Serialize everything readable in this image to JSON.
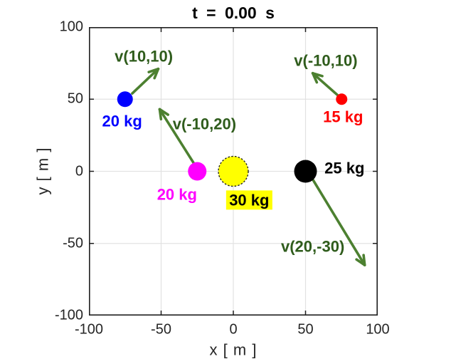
{
  "title": "t = 0.00 s",
  "axes": {
    "x_label": "x [ m ]",
    "y_label": "y [ m ]",
    "x_tick_labels": [
      "-100",
      "-50",
      "0",
      "50",
      "100"
    ],
    "y_tick_labels": [
      "-100",
      "-50",
      "0",
      "50",
      "100"
    ]
  },
  "colors": {
    "background": "#ffffff",
    "axis_box": "#1f1f1f",
    "grid": "#e2e2e2",
    "tick_text": "#262626",
    "velocity_text": "#2f5c1c",
    "velocity_arrow": "#4c8030"
  },
  "chart_data": {
    "type": "scatter",
    "title": "t = 0.00 s",
    "time_s": 0.0,
    "xlabel": "x [m]",
    "ylabel": "y [m]",
    "xlim": [
      -100,
      100
    ],
    "ylim": [
      -100,
      100
    ],
    "x_ticks": [
      -100,
      -50,
      0,
      50,
      100
    ],
    "y_ticks": [
      -100,
      -50,
      0,
      50,
      100
    ],
    "grid": true,
    "particles": [
      {
        "id": "blue",
        "x": -75,
        "y": 50,
        "mass_kg": 20,
        "mass_label": "20 kg",
        "mass_label_color": "#0000ff",
        "color": "#0000ff",
        "radius_px": 11,
        "mass_label_pos": {
          "x": -77,
          "y": 35
        },
        "velocity": {
          "vx": 10,
          "vy": 10,
          "label": "v(10,10)",
          "label_pos": {
            "x": -62,
            "y": 80
          },
          "arrow": {
            "x1": -70,
            "y1": 54,
            "x2": -52,
            "y2": 71
          }
        }
      },
      {
        "id": "magenta",
        "x": -25,
        "y": 0,
        "mass_kg": 20,
        "mass_label": "20 kg",
        "mass_label_color": "#ff00ff",
        "color": "#ff00ff",
        "radius_px": 13,
        "mass_label_pos": {
          "x": -39,
          "y": -16
        },
        "velocity": {
          "vx": -10,
          "vy": 20,
          "label": "v(-10,20)",
          "label_pos": {
            "x": -20,
            "y": 33
          },
          "arrow": {
            "x1": -27,
            "y1": 5,
            "x2": -51,
            "y2": 43
          }
        }
      },
      {
        "id": "yellow",
        "x": 0,
        "y": 0,
        "mass_kg": 30,
        "mass_label": "30 kg",
        "mass_label_color": "#000000",
        "label_highlight": "#ffff00",
        "color": "#ffff00",
        "radius_px": 21,
        "outline": "dotted",
        "mass_label_pos": {
          "x": 11,
          "y": -20
        },
        "velocity": null
      },
      {
        "id": "black",
        "x": 50,
        "y": 0,
        "mass_kg": 25,
        "mass_label": "25 kg",
        "mass_label_color": "#000000",
        "color": "#000000",
        "radius_px": 16,
        "mass_label_pos": {
          "x": 77,
          "y": 2
        },
        "velocity": {
          "vx": 20,
          "vy": -30,
          "label": "v(20,-30)",
          "label_pos": {
            "x": 55,
            "y": -52
          },
          "arrow": {
            "x1": 54,
            "y1": -4,
            "x2": 91,
            "y2": -65
          }
        }
      },
      {
        "id": "red",
        "x": 75,
        "y": 50,
        "mass_kg": 15,
        "mass_label": "15 kg",
        "mass_label_color": "#ff0000",
        "color": "#ff0000",
        "radius_px": 8,
        "mass_label_pos": {
          "x": 76,
          "y": 38
        },
        "velocity": {
          "vx": -10,
          "vy": 10,
          "label": "v(-10,10)",
          "label_pos": {
            "x": 64,
            "y": 77
          },
          "arrow": {
            "x1": 72,
            "y1": 53,
            "x2": 55,
            "y2": 68
          }
        }
      }
    ]
  }
}
